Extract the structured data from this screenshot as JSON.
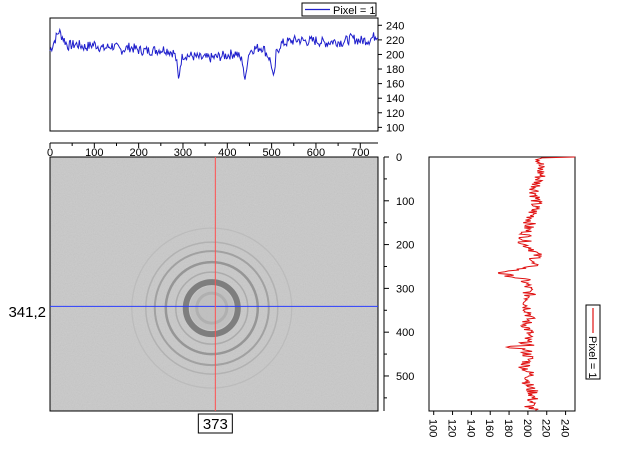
{
  "colors": {
    "top_profile": "#1f1fcc",
    "side_profile": "#e01010",
    "h_cursor": "#2a3cff",
    "v_cursor": "#ff5050",
    "image_bg": "#c9c9c9"
  },
  "cursor": {
    "row_readout": "341,2",
    "col_readout": "373",
    "row": 341.2,
    "col": 373
  },
  "chart_data": [
    {
      "type": "line",
      "title": "",
      "legend": "Pixel = 1",
      "legend_position": "top-right",
      "xlim": [
        0,
        740
      ],
      "ylim": [
        95,
        250
      ],
      "y_ticks": [
        "100",
        "120",
        "140",
        "160",
        "180",
        "200",
        "220",
        "240"
      ],
      "series": [
        {
          "name": "Pixel = 1",
          "x": [
            0,
            20,
            40,
            60,
            80,
            100,
            120,
            140,
            160,
            180,
            200,
            220,
            240,
            260,
            280,
            285,
            290,
            295,
            300,
            320,
            340,
            360,
            380,
            400,
            420,
            435,
            440,
            445,
            450,
            460,
            480,
            495,
            500,
            505,
            510,
            520,
            540,
            560,
            580,
            600,
            620,
            640,
            660,
            680,
            700,
            720,
            740
          ],
          "y": [
            205,
            232,
            212,
            214,
            210,
            214,
            208,
            212,
            206,
            210,
            206,
            205,
            206,
            207,
            202,
            192,
            165,
            190,
            199,
            198,
            195,
            195,
            197,
            199,
            202,
            190,
            160,
            192,
            204,
            208,
            210,
            195,
            185,
            162,
            200,
            214,
            218,
            220,
            218,
            219,
            216,
            218,
            217,
            222,
            219,
            220,
            228
          ]
        }
      ]
    },
    {
      "type": "line",
      "title": "",
      "legend": "Pixel = 1",
      "legend_position": "right",
      "xlim": [
        95,
        250
      ],
      "ylim": [
        0,
        580
      ],
      "x_ticks": [
        "100",
        "120",
        "140",
        "160",
        "180",
        "200",
        "220",
        "240"
      ],
      "series": [
        {
          "name": "Pixel = 1",
          "x": [
            250,
            215,
            212,
            214,
            210,
            208,
            209,
            206,
            204,
            200,
            196,
            206,
            210,
            203,
            205,
            170,
            196,
            200,
            202,
            199,
            203,
            198,
            201,
            199,
            197,
            200,
            175,
            198,
            201,
            197,
            203,
            200,
            206,
            204,
            202,
            206
          ],
          "y": [
            0,
            2,
            20,
            40,
            60,
            80,
            100,
            120,
            140,
            160,
            200,
            210,
            230,
            240,
            250,
            265,
            280,
            300,
            320,
            340,
            360,
            380,
            400,
            410,
            420,
            430,
            432,
            440,
            460,
            480,
            500,
            520,
            540,
            560,
            570,
            578
          ]
        }
      ]
    },
    {
      "type": "heatmap",
      "title": "",
      "xlim": [
        0,
        740
      ],
      "ylim": [
        0,
        580
      ],
      "x_ticks": [
        "0",
        "100",
        "200",
        "300",
        "400",
        "500",
        "600",
        "700"
      ],
      "y_ticks": [
        "0",
        "100",
        "200",
        "300",
        "400",
        "500"
      ],
      "features": "concentric rings centered near column 365, row 345"
    }
  ]
}
